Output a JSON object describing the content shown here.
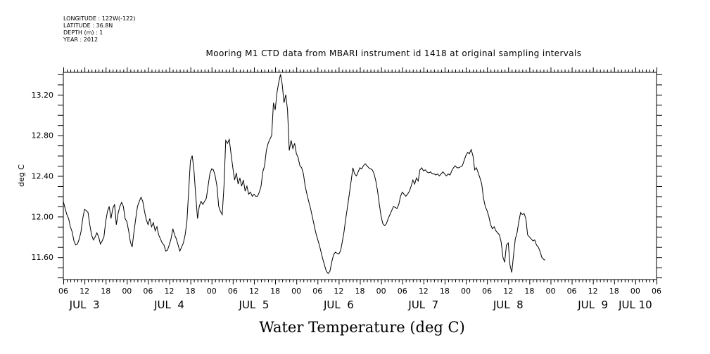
{
  "header": {
    "meta_lines": [
      "LONGITUDE : 122W(-122)",
      "LATITUDE : 36.8N",
      "DEPTH (m) : 1",
      "YEAR : 2012"
    ],
    "title": "Mooring M1 CTD data from MBARI instrument id 1418 at original sampling intervals"
  },
  "chart_data": {
    "type": "line",
    "title": "Mooring M1 CTD data from MBARI instrument id 1418 at original sampling intervals",
    "xlabel": "Water Temperature (deg C)",
    "ylabel": "deg C",
    "xlim_hours": [
      6,
      174
    ],
    "ylim": [
      11.38,
      13.42
    ],
    "yticks_labeled": [
      11.6,
      12.0,
      12.4,
      12.8,
      13.2
    ],
    "ytick_labels": [
      "11.60",
      "12.00",
      "12.40",
      "12.80",
      "13.20"
    ],
    "xtick_hour_labels": [
      "06",
      "12",
      "18",
      "00",
      "06",
      "12",
      "18",
      "00",
      "06",
      "12",
      "18",
      "00",
      "06",
      "12",
      "18",
      "00",
      "06",
      "12",
      "18",
      "00",
      "06",
      "12",
      "18",
      "00",
      "06",
      "12",
      "18",
      "00",
      "06"
    ],
    "xtick_hour_values": [
      6,
      12,
      18,
      24,
      30,
      36,
      42,
      48,
      54,
      60,
      66,
      72,
      78,
      84,
      90,
      96,
      102,
      108,
      114,
      120,
      126,
      132,
      138,
      144,
      150,
      156,
      162,
      168,
      174
    ],
    "day_labels": [
      {
        "label": "JUL  3",
        "hour": 12
      },
      {
        "label": "JUL  4",
        "hour": 36
      },
      {
        "label": "JUL  5",
        "hour": 60
      },
      {
        "label": "JUL  6",
        "hour": 84
      },
      {
        "label": "JUL  7",
        "hour": 108
      },
      {
        "label": "JUL  8",
        "hour": 132
      },
      {
        "label": "JUL  9",
        "hour": 156
      },
      {
        "label": "JUL 10",
        "hour": 168
      }
    ],
    "x_reference": "hours since 2012-07-03 00:00",
    "series": [
      {
        "points": [
          [
            6.0,
            12.15
          ],
          [
            6.5,
            12.08
          ],
          [
            7.0,
            12.02
          ],
          [
            7.5,
            11.98
          ],
          [
            8.0,
            11.9
          ],
          [
            8.5,
            11.85
          ],
          [
            9.0,
            11.76
          ],
          [
            9.5,
            11.72
          ],
          [
            10.0,
            11.73
          ],
          [
            10.5,
            11.78
          ],
          [
            11.0,
            11.85
          ],
          [
            11.5,
            11.98
          ],
          [
            12.0,
            12.07
          ],
          [
            12.5,
            12.06
          ],
          [
            13.0,
            12.04
          ],
          [
            13.5,
            11.92
          ],
          [
            14.0,
            11.82
          ],
          [
            14.5,
            11.77
          ],
          [
            15.0,
            11.8
          ],
          [
            15.5,
            11.84
          ],
          [
            16.0,
            11.8
          ],
          [
            16.5,
            11.73
          ],
          [
            17.0,
            11.76
          ],
          [
            17.5,
            11.8
          ],
          [
            18.0,
            11.95
          ],
          [
            18.5,
            12.05
          ],
          [
            19.0,
            12.1
          ],
          [
            19.5,
            11.98
          ],
          [
            20.0,
            12.08
          ],
          [
            20.5,
            12.12
          ],
          [
            21.0,
            11.92
          ],
          [
            21.5,
            12.03
          ],
          [
            22.0,
            12.1
          ],
          [
            22.5,
            12.14
          ],
          [
            23.0,
            12.1
          ],
          [
            23.5,
            11.98
          ],
          [
            24.0,
            11.95
          ],
          [
            24.5,
            11.86
          ],
          [
            25.0,
            11.75
          ],
          [
            25.5,
            11.7
          ],
          [
            26.0,
            11.85
          ],
          [
            26.5,
            11.98
          ],
          [
            27.0,
            12.1
          ],
          [
            27.5,
            12.15
          ],
          [
            28.0,
            12.19
          ],
          [
            28.5,
            12.15
          ],
          [
            29.0,
            12.05
          ],
          [
            29.5,
            11.97
          ],
          [
            30.0,
            11.92
          ],
          [
            30.5,
            11.98
          ],
          [
            31.0,
            11.9
          ],
          [
            31.5,
            11.94
          ],
          [
            32.0,
            11.86
          ],
          [
            32.5,
            11.9
          ],
          [
            33.0,
            11.82
          ],
          [
            33.5,
            11.78
          ],
          [
            34.0,
            11.74
          ],
          [
            34.5,
            11.72
          ],
          [
            35.0,
            11.66
          ],
          [
            35.5,
            11.67
          ],
          [
            36.0,
            11.72
          ],
          [
            36.5,
            11.78
          ],
          [
            37.0,
            11.88
          ],
          [
            37.5,
            11.82
          ],
          [
            38.0,
            11.78
          ],
          [
            38.5,
            11.72
          ],
          [
            39.0,
            11.66
          ],
          [
            39.5,
            11.7
          ],
          [
            40.0,
            11.74
          ],
          [
            40.5,
            11.82
          ],
          [
            41.0,
            11.95
          ],
          [
            41.5,
            12.25
          ],
          [
            42.0,
            12.55
          ],
          [
            42.5,
            12.6
          ],
          [
            43.0,
            12.45
          ],
          [
            43.5,
            12.2
          ],
          [
            44.0,
            11.98
          ],
          [
            44.5,
            12.1
          ],
          [
            45.0,
            12.15
          ],
          [
            45.5,
            12.12
          ],
          [
            46.0,
            12.15
          ],
          [
            46.5,
            12.18
          ],
          [
            47.0,
            12.3
          ],
          [
            47.5,
            12.42
          ],
          [
            48.0,
            12.47
          ],
          [
            48.5,
            12.46
          ],
          [
            49.0,
            12.4
          ],
          [
            49.5,
            12.3
          ],
          [
            50.0,
            12.1
          ],
          [
            50.5,
            12.05
          ],
          [
            51.0,
            12.02
          ],
          [
            51.5,
            12.3
          ],
          [
            52.0,
            12.75
          ],
          [
            52.5,
            12.72
          ],
          [
            53.0,
            12.76
          ],
          [
            53.5,
            12.62
          ],
          [
            54.0,
            12.48
          ],
          [
            54.5,
            12.36
          ],
          [
            55.0,
            12.43
          ],
          [
            55.5,
            12.32
          ],
          [
            56.0,
            12.38
          ],
          [
            56.5,
            12.3
          ],
          [
            57.0,
            12.36
          ],
          [
            57.5,
            12.25
          ],
          [
            58.0,
            12.3
          ],
          [
            58.5,
            12.22
          ],
          [
            59.0,
            12.24
          ],
          [
            59.5,
            12.2
          ],
          [
            60.0,
            12.22
          ],
          [
            60.5,
            12.2
          ],
          [
            61.0,
            12.2
          ],
          [
            61.5,
            12.24
          ],
          [
            62.0,
            12.3
          ],
          [
            62.5,
            12.44
          ],
          [
            63.0,
            12.5
          ],
          [
            63.5,
            12.65
          ],
          [
            64.0,
            12.72
          ],
          [
            64.5,
            12.76
          ],
          [
            65.0,
            12.8
          ],
          [
            65.5,
            13.12
          ],
          [
            66.0,
            13.05
          ],
          [
            66.5,
            13.22
          ],
          [
            67.0,
            13.32
          ],
          [
            67.5,
            13.4
          ],
          [
            68.0,
            13.3
          ],
          [
            68.5,
            13.12
          ],
          [
            69.0,
            13.2
          ],
          [
            69.5,
            13.05
          ],
          [
            70.0,
            12.65
          ],
          [
            70.5,
            12.75
          ],
          [
            71.0,
            12.67
          ],
          [
            71.5,
            12.72
          ],
          [
            72.0,
            12.62
          ],
          [
            72.5,
            12.58
          ],
          [
            73.0,
            12.5
          ],
          [
            73.5,
            12.48
          ],
          [
            74.0,
            12.42
          ],
          [
            74.5,
            12.3
          ],
          [
            75.0,
            12.22
          ],
          [
            75.5,
            12.15
          ],
          [
            76.0,
            12.08
          ],
          [
            76.5,
            12.0
          ],
          [
            77.0,
            11.92
          ],
          [
            77.5,
            11.84
          ],
          [
            78.0,
            11.78
          ],
          [
            78.5,
            11.72
          ],
          [
            79.0,
            11.65
          ],
          [
            79.5,
            11.58
          ],
          [
            80.0,
            11.52
          ],
          [
            80.5,
            11.46
          ],
          [
            81.0,
            11.44
          ],
          [
            81.5,
            11.46
          ],
          [
            82.0,
            11.55
          ],
          [
            82.5,
            11.62
          ],
          [
            83.0,
            11.65
          ],
          [
            83.5,
            11.64
          ],
          [
            84.0,
            11.63
          ],
          [
            84.5,
            11.66
          ],
          [
            85.0,
            11.75
          ],
          [
            85.5,
            11.85
          ],
          [
            86.0,
            11.98
          ],
          [
            86.5,
            12.1
          ],
          [
            87.0,
            12.22
          ],
          [
            87.5,
            12.35
          ],
          [
            88.0,
            12.48
          ],
          [
            88.5,
            12.42
          ],
          [
            89.0,
            12.4
          ],
          [
            89.5,
            12.44
          ],
          [
            90.0,
            12.48
          ],
          [
            90.5,
            12.47
          ],
          [
            91.0,
            12.5
          ],
          [
            91.5,
            12.52
          ],
          [
            92.0,
            12.5
          ],
          [
            92.5,
            12.48
          ],
          [
            93.0,
            12.47
          ],
          [
            93.5,
            12.46
          ],
          [
            94.0,
            12.42
          ],
          [
            94.5,
            12.35
          ],
          [
            95.0,
            12.25
          ],
          [
            95.5,
            12.12
          ],
          [
            96.0,
            12.0
          ],
          [
            96.5,
            11.93
          ],
          [
            97.0,
            11.91
          ],
          [
            97.5,
            11.93
          ],
          [
            98.0,
            11.98
          ],
          [
            98.5,
            12.02
          ],
          [
            99.0,
            12.06
          ],
          [
            99.5,
            12.1
          ],
          [
            100.0,
            12.09
          ],
          [
            100.5,
            12.08
          ],
          [
            101.0,
            12.12
          ],
          [
            101.5,
            12.2
          ],
          [
            102.0,
            12.24
          ],
          [
            102.5,
            12.22
          ],
          [
            103.0,
            12.2
          ],
          [
            103.5,
            12.22
          ],
          [
            104.0,
            12.25
          ],
          [
            104.5,
            12.3
          ],
          [
            105.0,
            12.36
          ],
          [
            105.5,
            12.32
          ],
          [
            106.0,
            12.38
          ],
          [
            106.5,
            12.35
          ],
          [
            107.0,
            12.46
          ],
          [
            107.5,
            12.48
          ],
          [
            108.0,
            12.45
          ],
          [
            108.5,
            12.46
          ],
          [
            109.0,
            12.44
          ],
          [
            109.5,
            12.43
          ],
          [
            110.0,
            12.44
          ],
          [
            110.5,
            12.42
          ],
          [
            111.0,
            12.42
          ],
          [
            111.5,
            12.41
          ],
          [
            112.0,
            12.42
          ],
          [
            112.5,
            12.4
          ],
          [
            113.0,
            12.42
          ],
          [
            113.5,
            12.44
          ],
          [
            114.0,
            12.42
          ],
          [
            114.5,
            12.4
          ],
          [
            115.0,
            12.42
          ],
          [
            115.5,
            12.41
          ],
          [
            116.0,
            12.45
          ],
          [
            116.5,
            12.48
          ],
          [
            117.0,
            12.5
          ],
          [
            117.5,
            12.48
          ],
          [
            118.0,
            12.48
          ],
          [
            118.5,
            12.49
          ],
          [
            119.0,
            12.5
          ],
          [
            119.5,
            12.55
          ],
          [
            120.0,
            12.6
          ],
          [
            120.5,
            12.63
          ],
          [
            121.0,
            12.62
          ],
          [
            121.5,
            12.66
          ],
          [
            122.0,
            12.6
          ],
          [
            122.5,
            12.46
          ],
          [
            123.0,
            12.48
          ],
          [
            123.5,
            12.43
          ],
          [
            124.0,
            12.38
          ],
          [
            124.5,
            12.32
          ],
          [
            125.0,
            12.18
          ],
          [
            125.5,
            12.1
          ],
          [
            126.0,
            12.06
          ],
          [
            126.5,
            12.0
          ],
          [
            127.0,
            11.92
          ],
          [
            127.5,
            11.88
          ],
          [
            128.0,
            11.9
          ],
          [
            128.5,
            11.86
          ],
          [
            129.0,
            11.84
          ],
          [
            129.5,
            11.82
          ],
          [
            130.0,
            11.75
          ],
          [
            130.5,
            11.6
          ],
          [
            131.0,
            11.55
          ],
          [
            131.5,
            11.72
          ],
          [
            132.0,
            11.74
          ],
          [
            132.5,
            11.52
          ],
          [
            133.0,
            11.45
          ],
          [
            133.5,
            11.62
          ],
          [
            134.0,
            11.78
          ],
          [
            134.5,
            11.84
          ],
          [
            135.0,
            11.95
          ],
          [
            135.5,
            12.04
          ],
          [
            136.0,
            12.02
          ],
          [
            136.5,
            12.03
          ],
          [
            137.0,
            11.98
          ],
          [
            137.5,
            11.82
          ],
          [
            138.0,
            11.8
          ],
          [
            138.5,
            11.78
          ],
          [
            139.0,
            11.76
          ],
          [
            139.5,
            11.77
          ],
          [
            140.0,
            11.72
          ],
          [
            140.5,
            11.7
          ],
          [
            141.0,
            11.66
          ],
          [
            141.5,
            11.6
          ],
          [
            142.0,
            11.58
          ],
          [
            142.5,
            11.57
          ]
        ]
      }
    ]
  }
}
